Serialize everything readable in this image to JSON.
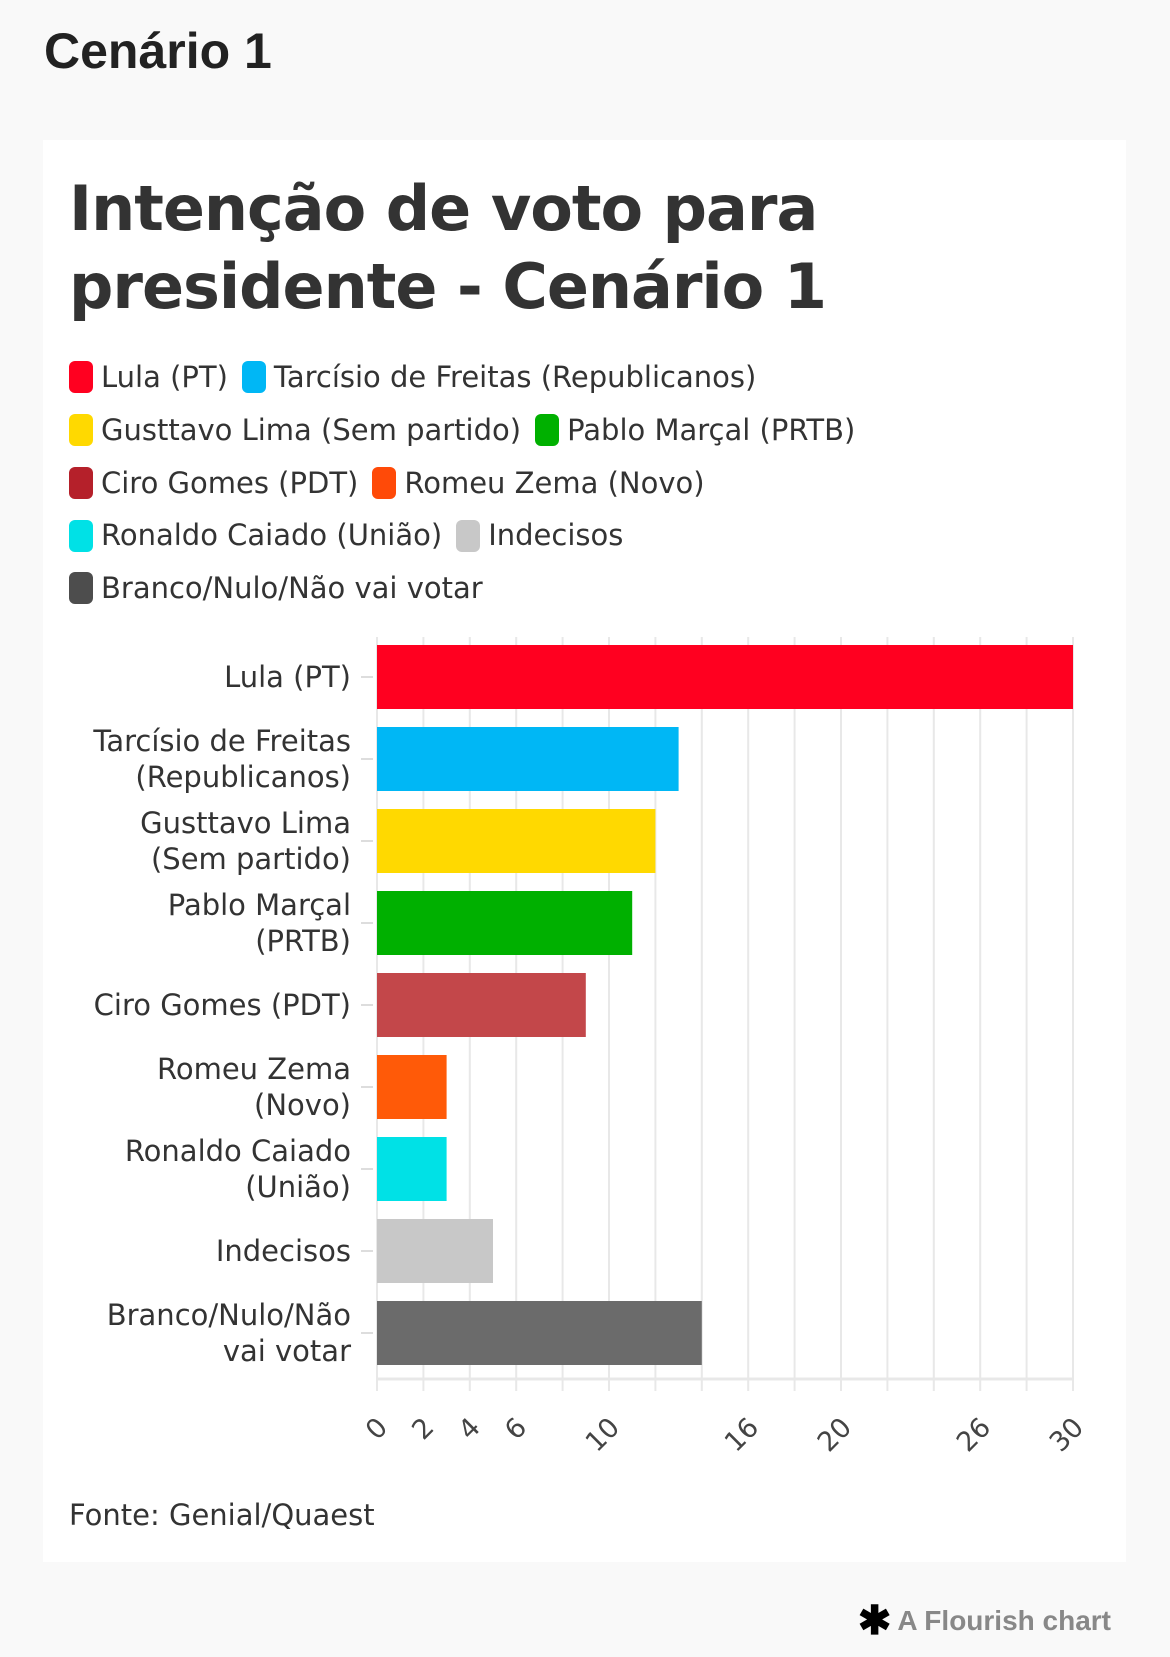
{
  "page_title": "Cenário 1",
  "footer": {
    "credit": "A Flourish chart",
    "icon": "asterisk-icon"
  },
  "chart_data": {
    "type": "bar",
    "orientation": "horizontal",
    "title": "Intenção de voto para presidente - Cenário 1",
    "source": "Fonte: Genial/Quaest",
    "categories": [
      "Lula (PT)",
      "Tarcísio de Freitas (Republicanos)",
      "Gusttavo Lima (Sem partido)",
      "Pablo Marçal (PRTB)",
      "Ciro Gomes (PDT)",
      "Romeu Zema (Novo)",
      "Ronaldo Caiado (União)",
      "Indecisos",
      "Branco/Nulo/Não vai votar"
    ],
    "category_label_lines": [
      [
        "Lula (PT)"
      ],
      [
        "Tarcísio de Freitas",
        "(Republicanos)"
      ],
      [
        "Gusttavo Lima",
        "(Sem partido)"
      ],
      [
        "Pablo Marçal",
        "(PRTB)"
      ],
      [
        "Ciro Gomes (PDT)"
      ],
      [
        "Romeu Zema",
        "(Novo)"
      ],
      [
        "Ronaldo Caiado",
        "(União)"
      ],
      [
        "Indecisos"
      ],
      [
        "Branco/Nulo/Não",
        "vai votar"
      ]
    ],
    "values": [
      30,
      13,
      12,
      11,
      9,
      3,
      3,
      5,
      14
    ],
    "colors": [
      "#ff0020",
      "#00b7f5",
      "#ffd900",
      "#00b000",
      "#c3474a",
      "#ff5a08",
      "#00e1e6",
      "#c8c8c8",
      "#6b6b6b"
    ],
    "legend_colors": [
      "#ff0020",
      "#00b7f5",
      "#ffd900",
      "#00b000",
      "#b5202a",
      "#ff4a08",
      "#00e1e6",
      "#c8c8c8",
      "#4d4d4d"
    ],
    "xlim": [
      0,
      30
    ],
    "grid_step": 2,
    "tick_labels": [
      "0",
      "2",
      "4",
      "6",
      "10",
      "16",
      "20",
      "26",
      "30"
    ],
    "grid": true,
    "legend_position": "top"
  }
}
